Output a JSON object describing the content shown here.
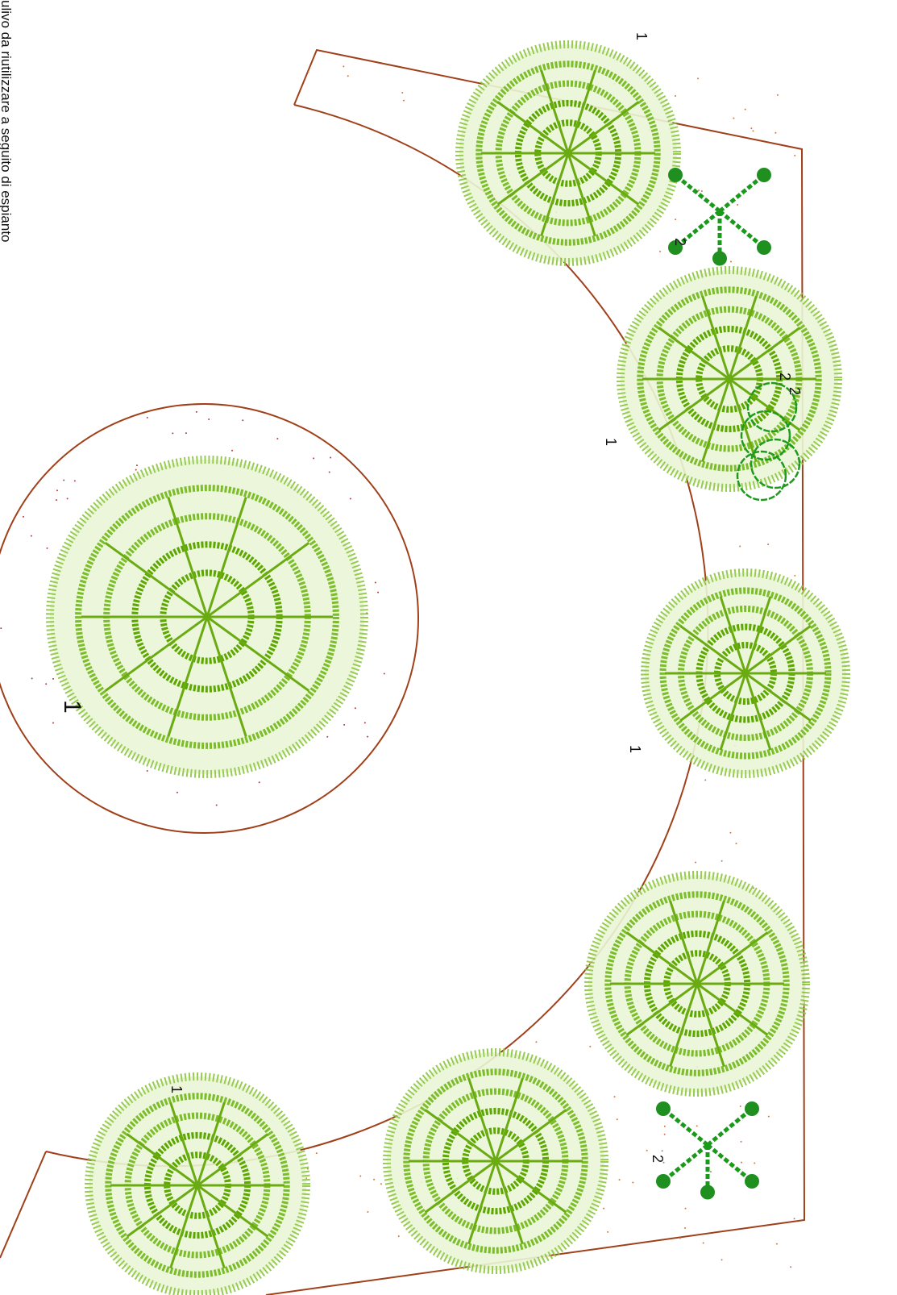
{
  "note": "ulivo da riutilizzare a seguito di espianto",
  "labels": [
    "1",
    "2",
    "2",
    "2",
    "1",
    "1",
    "1",
    "1",
    "2"
  ]
}
